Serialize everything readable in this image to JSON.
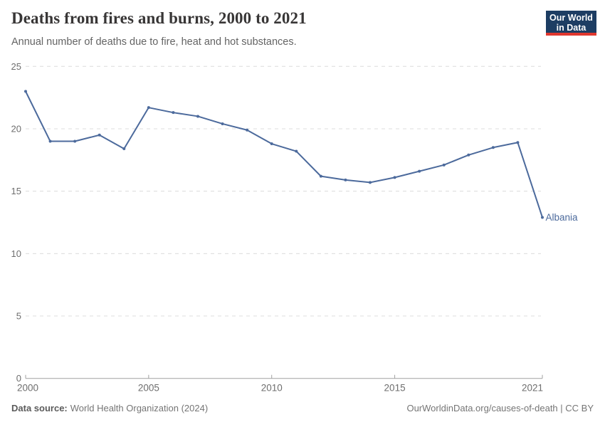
{
  "header": {
    "title": "Deaths from fires and burns, 2000 to 2021",
    "subtitle": "Annual number of deaths due to fire, heat and hot substances.",
    "logo": {
      "line1": "Our World",
      "line2": "in Data",
      "bg_color": "#1d3d63",
      "accent_color": "#e0372e"
    }
  },
  "chart_data": {
    "type": "line",
    "title": "Deaths from fires and burns, 2000 to 2021",
    "xlabel": "",
    "ylabel": "",
    "xlim": [
      2000,
      2021
    ],
    "ylim": [
      0,
      25
    ],
    "x_ticks": [
      2000,
      2005,
      2010,
      2015,
      2021
    ],
    "y_ticks": [
      0,
      5,
      10,
      15,
      20,
      25
    ],
    "grid": "horizontal-dashed",
    "legend_position": "end-of-line",
    "series": [
      {
        "name": "Albania",
        "color": "#4C6A9C",
        "x": [
          2000,
          2001,
          2002,
          2003,
          2004,
          2005,
          2006,
          2007,
          2008,
          2009,
          2010,
          2011,
          2012,
          2013,
          2014,
          2015,
          2016,
          2017,
          2018,
          2019,
          2020,
          2021
        ],
        "values": [
          23.0,
          19.0,
          19.0,
          19.5,
          18.4,
          21.7,
          21.3,
          21.0,
          20.4,
          19.9,
          18.8,
          18.2,
          16.2,
          15.9,
          15.7,
          16.1,
          16.6,
          17.1,
          17.9,
          18.5,
          18.9,
          12.9
        ]
      }
    ]
  },
  "footer": {
    "datasource_label": "Data source:",
    "datasource_value": "World Health Organization (2024)",
    "credit": "OurWorldinData.org/causes-of-death | CC BY"
  }
}
